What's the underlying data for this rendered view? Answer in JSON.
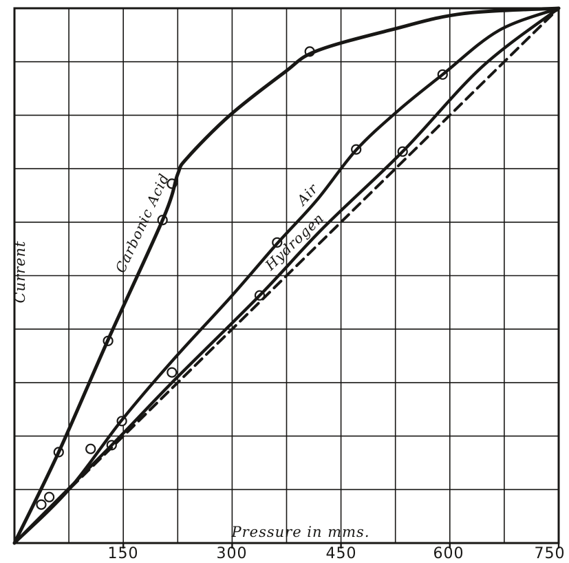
{
  "figure": {
    "paper_color": "#ffffff",
    "ink_color": "#181715"
  },
  "chart_data": {
    "type": "line",
    "title": "",
    "xlabel": "Pressure in mms.",
    "ylabel": "Current",
    "xlim": [
      0,
      750
    ],
    "ylim": [
      0,
      100
    ],
    "x_ticks": [
      150,
      300,
      450,
      600,
      750
    ],
    "y_tick_labels": [],
    "grid": {
      "on": true,
      "x_divisions": 10,
      "y_divisions": 10
    },
    "legend_position": "labels-along-curves",
    "marker_style": "open-circle",
    "series": [
      {
        "name": "Carbonic Acid",
        "line_style": "solid",
        "stroke_width": 5,
        "points": [
          [
            0,
            0
          ],
          [
            61,
            17
          ],
          [
            129,
            38
          ],
          [
            206,
            61
          ],
          [
            225,
            69
          ],
          [
            238,
            72
          ],
          [
            297,
            80
          ],
          [
            372,
            88
          ],
          [
            416,
            92
          ],
          [
            520,
            96
          ],
          [
            618,
            99
          ],
          [
            750,
            100
          ]
        ],
        "markers": [
          [
            37,
            7.2
          ],
          [
            48,
            8.6
          ],
          [
            61,
            17
          ],
          [
            129,
            37.8
          ],
          [
            204,
            60.4
          ],
          [
            217,
            67.2
          ],
          [
            407,
            91.9
          ]
        ],
        "label_pos": {
          "x": 213,
          "y": 327,
          "angle": -65
        }
      },
      {
        "name": "Air",
        "line_style": "solid",
        "stroke_width": 4.4,
        "points": [
          [
            0,
            0
          ],
          [
            75,
            10
          ],
          [
            148,
            23
          ],
          [
            217,
            34
          ],
          [
            298,
            46
          ],
          [
            362,
            56
          ],
          [
            416,
            64
          ],
          [
            471,
            73.5
          ],
          [
            530,
            81
          ],
          [
            590,
            87.6
          ],
          [
            667,
            95.8
          ],
          [
            750,
            100
          ]
        ],
        "markers": [
          [
            105,
            17.6
          ],
          [
            148,
            22.8
          ],
          [
            217,
            31.9
          ],
          [
            362,
            56.2
          ],
          [
            471,
            73.6
          ],
          [
            590,
            87.6
          ]
        ],
        "label_pos": {
          "x": 452,
          "y": 287,
          "angle": -48
        }
      },
      {
        "name": "Hydrogen",
        "line_style": "solid",
        "stroke_width": 4.4,
        "points": [
          [
            0,
            0
          ],
          [
            134,
            18.3
          ],
          [
            217,
            30
          ],
          [
            338,
            46.3
          ],
          [
            426,
            59
          ],
          [
            535,
            73.2
          ],
          [
            644,
            89
          ],
          [
            750,
            100
          ]
        ],
        "markers": [
          [
            134,
            18.3
          ],
          [
            338,
            46.3
          ],
          [
            535,
            73.2
          ]
        ],
        "label_pos": {
          "x": 433,
          "y": 356,
          "angle": -44
        }
      },
      {
        "name": "",
        "line_style": "dashed",
        "stroke_width": 4,
        "points": [
          [
            0,
            0
          ],
          [
            750,
            100
          ]
        ],
        "markers": []
      }
    ]
  }
}
